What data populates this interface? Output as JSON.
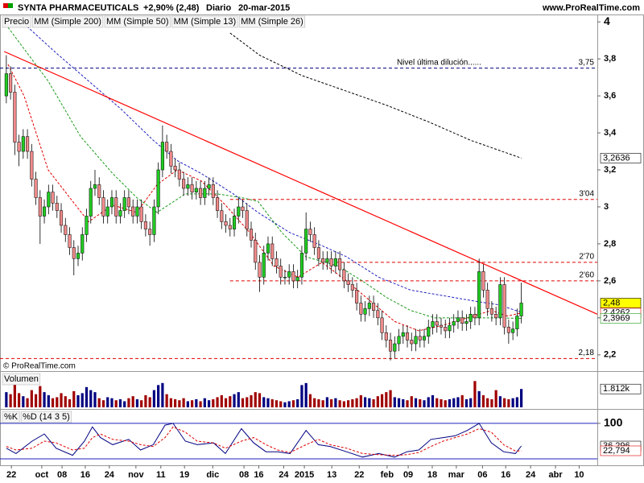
{
  "chart_data": [
    {
      "type": "candlestick",
      "title": "SYNTA PHARMACEUTICALS",
      "change": "+2,90% (2,48)",
      "period": "Diario",
      "date": "20-mar-2015",
      "source": "www.ProRealTime.com",
      "copyright": "© ProRealTime.com",
      "price_label": "Precio",
      "up_color": "#22cc22",
      "down_color": "#f08a8a",
      "open": [
        3.6,
        3.72,
        3.62,
        3.35,
        3.3,
        3.38,
        3.3,
        3.15,
        3.05,
        2.95,
        3.0,
        3.08,
        3.02,
        2.98,
        2.9,
        2.85,
        2.78,
        2.72,
        2.75,
        2.85,
        2.95,
        3.1,
        3.12,
        3.05,
        2.95,
        3.0,
        3.05,
        2.95,
        2.98,
        3.05,
        3.0,
        2.95,
        3.0,
        2.92,
        2.88,
        2.85,
        3.0,
        3.2,
        3.35,
        3.3,
        3.22,
        3.2,
        3.15,
        3.1,
        3.12,
        3.08,
        3.1,
        3.05,
        3.1,
        3.12,
        3.05,
        2.98,
        2.92,
        2.9,
        2.88,
        2.95,
        3.0,
        2.98,
        2.88,
        2.82,
        2.7,
        2.62,
        2.75,
        2.8,
        2.72,
        2.68,
        2.62,
        2.62,
        2.65,
        2.6,
        2.62,
        2.75,
        2.88,
        2.85,
        2.78,
        2.72,
        2.7,
        2.72,
        2.68,
        2.72,
        2.66,
        2.6,
        2.58,
        2.55,
        2.48,
        2.42,
        2.45,
        2.48,
        2.44,
        2.4,
        2.32,
        2.28,
        2.22,
        2.26,
        2.3,
        2.32,
        2.28,
        2.26,
        2.3,
        2.28,
        2.3,
        2.35,
        2.38,
        2.36,
        2.35,
        2.33,
        2.36,
        2.38,
        2.4,
        2.37,
        2.38,
        2.42,
        2.4,
        2.65,
        2.55,
        2.45,
        2.42,
        2.4,
        2.58,
        2.35,
        2.32,
        2.34,
        2.41
      ],
      "high": [
        3.82,
        3.76,
        3.66,
        3.39,
        3.42,
        3.42,
        3.34,
        3.19,
        3.09,
        3.04,
        3.12,
        3.12,
        3.06,
        3.02,
        2.94,
        2.89,
        2.82,
        2.79,
        2.89,
        2.99,
        3.14,
        3.2,
        3.16,
        3.09,
        3.04,
        3.09,
        3.09,
        3.02,
        3.09,
        3.09,
        3.04,
        3.04,
        3.04,
        2.96,
        2.92,
        3.04,
        3.24,
        3.44,
        3.39,
        3.34,
        3.26,
        3.24,
        3.19,
        3.16,
        3.16,
        3.14,
        3.14,
        3.14,
        3.16,
        3.16,
        3.09,
        3.02,
        2.96,
        2.94,
        2.99,
        3.05,
        3.04,
        3.02,
        2.92,
        2.86,
        2.74,
        2.79,
        2.84,
        2.84,
        2.76,
        2.72,
        2.66,
        2.69,
        2.69,
        2.66,
        2.79,
        2.97,
        2.92,
        2.89,
        2.82,
        2.76,
        2.76,
        2.76,
        2.76,
        2.76,
        2.7,
        2.64,
        2.62,
        2.59,
        2.52,
        2.49,
        2.52,
        2.52,
        2.48,
        2.44,
        2.36,
        2.32,
        2.3,
        2.34,
        2.36,
        2.36,
        2.32,
        2.34,
        2.34,
        2.34,
        2.39,
        2.42,
        2.42,
        2.4,
        2.39,
        2.4,
        2.42,
        2.44,
        2.44,
        2.42,
        2.46,
        2.46,
        2.72,
        2.69,
        2.59,
        2.49,
        2.46,
        2.62,
        2.62,
        2.39,
        2.38,
        2.45,
        2.59
      ],
      "low": [
        3.56,
        3.58,
        3.28,
        3.22,
        3.26,
        3.26,
        3.11,
        3.01,
        2.8,
        2.91,
        2.96,
        2.98,
        2.94,
        2.86,
        2.81,
        2.74,
        2.63,
        2.68,
        2.71,
        2.81,
        2.91,
        3.06,
        3.01,
        2.91,
        2.91,
        2.96,
        2.91,
        2.91,
        2.94,
        2.96,
        2.91,
        2.91,
        2.88,
        2.84,
        2.79,
        2.81,
        2.96,
        3.16,
        3.26,
        3.18,
        3.16,
        3.11,
        3.06,
        3.06,
        3.04,
        3.04,
        3.01,
        3.01,
        3.06,
        3.01,
        2.94,
        2.88,
        2.86,
        2.84,
        2.84,
        2.91,
        2.94,
        2.84,
        2.78,
        2.66,
        2.54,
        2.58,
        2.71,
        2.68,
        2.64,
        2.58,
        2.58,
        2.58,
        2.56,
        2.56,
        2.58,
        2.71,
        2.81,
        2.74,
        2.68,
        2.66,
        2.66,
        2.64,
        2.64,
        2.62,
        2.56,
        2.54,
        2.51,
        2.44,
        2.38,
        2.38,
        2.41,
        2.4,
        2.36,
        2.28,
        2.24,
        2.17,
        2.18,
        2.22,
        2.26,
        2.24,
        2.22,
        2.22,
        2.24,
        2.24,
        2.26,
        2.31,
        2.32,
        2.31,
        2.29,
        2.29,
        2.32,
        2.34,
        2.33,
        2.33,
        2.34,
        2.36,
        2.36,
        2.51,
        2.41,
        2.38,
        2.36,
        2.36,
        2.31,
        2.26,
        2.28,
        2.3,
        2.37
      ],
      "close": [
        3.72,
        3.62,
        3.35,
        3.3,
        3.38,
        3.3,
        3.15,
        3.05,
        2.95,
        3.0,
        3.08,
        3.02,
        2.98,
        2.9,
        2.85,
        2.78,
        2.72,
        2.75,
        2.85,
        2.95,
        3.1,
        3.12,
        3.05,
        2.95,
        3.0,
        3.05,
        2.95,
        2.98,
        3.05,
        3.0,
        2.95,
        3.0,
        2.92,
        2.88,
        2.85,
        3.0,
        3.2,
        3.35,
        3.3,
        3.22,
        3.2,
        3.15,
        3.1,
        3.12,
        3.08,
        3.1,
        3.05,
        3.1,
        3.12,
        3.05,
        2.98,
        2.92,
        2.9,
        2.88,
        2.95,
        3.0,
        2.98,
        2.88,
        2.82,
        2.7,
        2.62,
        2.75,
        2.8,
        2.72,
        2.68,
        2.62,
        2.62,
        2.65,
        2.6,
        2.62,
        2.75,
        2.88,
        2.85,
        2.78,
        2.72,
        2.7,
        2.72,
        2.68,
        2.72,
        2.66,
        2.6,
        2.58,
        2.55,
        2.48,
        2.42,
        2.45,
        2.48,
        2.44,
        2.4,
        2.32,
        2.28,
        2.22,
        2.26,
        2.3,
        2.32,
        2.28,
        2.26,
        2.3,
        2.28,
        2.3,
        2.35,
        2.38,
        2.36,
        2.35,
        2.33,
        2.36,
        2.38,
        2.4,
        2.37,
        2.38,
        2.42,
        2.4,
        2.65,
        2.55,
        2.45,
        2.42,
        2.4,
        2.58,
        2.35,
        2.32,
        2.34,
        2.41,
        2.48
      ],
      "xlim": [
        -1.5,
        140
      ],
      "ylim": [
        2.16,
        4.04
      ],
      "yticks": [
        4,
        {
          "value": 3.8,
          "label": "3,8"
        },
        {
          "value": 3.6,
          "label": "3,6"
        },
        {
          "value": 3.4,
          "label": "3,4"
        },
        {
          "value": 3.2,
          "label": "3,2"
        },
        3,
        {
          "value": 2.8,
          "label": "2,8"
        },
        {
          "value": 2.6,
          "label": "2,6"
        },
        {
          "value": 2.4,
          "label": "2,4"
        },
        {
          "value": 2.2,
          "label": "2,2"
        }
      ],
      "series": [
        {
          "name": "MM (Simple 200)",
          "color": "#000000",
          "x": [
            53,
            60,
            70,
            80,
            90,
            100,
            110,
            122
          ],
          "values": [
            3.94,
            3.82,
            3.71,
            3.63,
            3.55,
            3.46,
            3.36,
            3.2636
          ]
        },
        {
          "name": "MM (Simple 50)",
          "color": "#2020c0",
          "x": [
            4.2,
            11.9,
            19.5,
            27.1,
            34.8,
            40.5,
            46.2,
            53.8,
            59.6,
            67.2,
            74.8,
            80.6,
            88.2,
            95.8,
            103.5,
            111.1,
            116.8,
            122
          ],
          "values": [
            3.99,
            3.83,
            3.68,
            3.53,
            3.36,
            3.25,
            3.18,
            3.07,
            2.97,
            2.86,
            2.79,
            2.73,
            2.62,
            2.55,
            2.52,
            2.49,
            2.47,
            2.43
          ]
        },
        {
          "name": "MM (Simple 13)",
          "color": "#e00000",
          "x": [
            0.4,
            4.2,
            9.9,
            15.7,
            19.5,
            25.2,
            30.9,
            35.7,
            40.5,
            46.2,
            51.9,
            57.7,
            63.4,
            69.1,
            74.8,
            80.6,
            86.3,
            92,
            97.7,
            103.5,
            109.2,
            114.9,
            118.7,
            122
          ],
          "values": [
            3.77,
            3.6,
            3.2,
            3.03,
            2.92,
            3.01,
            2.97,
            3.12,
            3.2,
            3.14,
            3.01,
            2.86,
            2.68,
            2.62,
            2.7,
            2.6,
            2.49,
            2.38,
            2.33,
            2.36,
            2.4,
            2.44,
            2.41,
            2.4262
          ]
        },
        {
          "name": "MM (Simple 26)",
          "color": "#1a9a1a",
          "x": [
            0.4,
            9.9,
            17.6,
            25.2,
            30.9,
            35.7,
            42.4,
            50,
            55.7,
            59.6,
            65.3,
            71,
            78.6,
            84.3,
            90.1,
            95.8,
            101.5,
            109.2,
            116.8,
            122
          ],
          "values": [
            3.97,
            3.68,
            3.38,
            3.18,
            3.05,
            2.97,
            3.07,
            3.07,
            3.05,
            3.03,
            2.86,
            2.73,
            2.68,
            2.6,
            2.51,
            2.44,
            2.4,
            2.4,
            2.4,
            2.3969
          ]
        }
      ],
      "trendline": {
        "color": "#ff0000",
        "x": [
          -0.5,
          140
        ],
        "values": [
          3.84,
          2.42
        ]
      },
      "levels": [
        {
          "value": 3.75,
          "label": "3,75",
          "note": "Nivel última dilución......",
          "from": -1.5,
          "color": "#000080"
        },
        {
          "value": 3.04,
          "label": "3'04",
          "from": 53,
          "color": "#e00000"
        },
        {
          "value": 2.7,
          "label": "2'70",
          "from": 78,
          "color": "#e00000"
        },
        {
          "value": 2.6,
          "label": "2'60",
          "from": 53,
          "color": "#e00000"
        },
        {
          "value": 2.18,
          "label": "2,18",
          "from": -1.5,
          "color": "#e00000"
        }
      ],
      "markers": [
        {
          "value": 3.2636,
          "label": "3,2636",
          "color": "#000000",
          "background": "#ffffff"
        },
        {
          "value": 2.48,
          "label": "2,48",
          "color": "#000000",
          "background": "#ffff00"
        },
        {
          "value": 2.4262,
          "label": "2,4262",
          "color": "#e00000",
          "background": "#ffffff"
        },
        {
          "value": 2.3969,
          "label": "2,3969",
          "color": "#1a9a1a",
          "background": "#ffffff"
        }
      ]
    },
    {
      "type": "bar",
      "title": "Volumen",
      "up_color": "#000080",
      "down_color": "#a00000",
      "values": [
        1500,
        1300,
        2600,
        1400,
        1100,
        900,
        1700,
        1300,
        2100,
        1500,
        1200,
        900,
        1000,
        1400,
        1100,
        800,
        1600,
        1200,
        1400,
        2000,
        1700,
        1500,
        900,
        700,
        1000,
        900,
        700,
        800,
        600,
        900,
        1100,
        800,
        700,
        1200,
        1000,
        1700,
        2200,
        2400,
        1300,
        900,
        800,
        700,
        900,
        600,
        700,
        800,
        600,
        900,
        700,
        800,
        1000,
        1200,
        900,
        1100,
        1300,
        1500,
        900,
        1000,
        1200,
        1500,
        1400,
        1000,
        900,
        800,
        700,
        600,
        500,
        600,
        700,
        800,
        2200,
        2400,
        1300,
        900,
        800,
        700,
        1000,
        800,
        900,
        700,
        600,
        700,
        800,
        900,
        1200,
        1000,
        900,
        800,
        1100,
        1300,
        1500,
        1700,
        1000,
        900,
        800,
        700,
        1100,
        900,
        800,
        700,
        1000,
        1200,
        900,
        800,
        700,
        800,
        900,
        1000,
        1200,
        800,
        900,
        2600,
        1600,
        1200,
        900,
        800,
        1700,
        1100,
        900,
        800,
        900,
        1000,
        1812
      ],
      "ylim": [
        0,
        3500
      ],
      "markers": [
        {
          "value": 1812,
          "label": "1.812k",
          "color": "#000000",
          "background": "#ffffff"
        }
      ]
    },
    {
      "type": "line",
      "ylim": [
        -18,
        136
      ],
      "yticks": [
        100
      ],
      "bands": [
        0,
        100
      ],
      "series": [
        {
          "name": "%K",
          "color": "#000080",
          "x": [
            0,
            2.3,
            6.1,
            9,
            11.8,
            15.7,
            18.5,
            20.4,
            22.3,
            25.2,
            29,
            31.8,
            34.8,
            37.6,
            39.5,
            42.4,
            45.2,
            49.1,
            51.9,
            55.7,
            58.6,
            61.5,
            64.3,
            67.2,
            71,
            73.9,
            76.7,
            80.6,
            84.4,
            88.2,
            92,
            94.9,
            97.7,
            100.6,
            103.5,
            106.3,
            109.2,
            112,
            114.9,
            117.8,
            120.6,
            122
          ],
          "values": [
            30,
            15,
            50,
            70,
            30,
            10,
            50,
            90,
            60,
            40,
            55,
            25,
            40,
            95,
            100,
            50,
            40,
            45,
            15,
            85,
            45,
            20,
            20,
            15,
            80,
            40,
            35,
            20,
            5,
            15,
            5,
            20,
            25,
            55,
            60,
            65,
            80,
            100,
            45,
            20,
            15,
            36.296
          ]
        },
        {
          "name": "%D (14 3 5)",
          "color": "#e00000",
          "x": [
            0,
            2.3,
            6.1,
            9,
            11.8,
            15.7,
            18.5,
            20.4,
            22.3,
            25.2,
            29,
            31.8,
            34.8,
            37.6,
            39.5,
            42.4,
            45.2,
            49.1,
            51.9,
            55.7,
            58.6,
            61.5,
            64.3,
            67.2,
            71,
            73.9,
            76.7,
            80.6,
            84.4,
            88.2,
            92,
            94.9,
            97.7,
            100.6,
            103.5,
            106.3,
            109.2,
            112,
            114.9,
            117.8,
            120.6,
            122
          ],
          "values": [
            35,
            25,
            30,
            50,
            45,
            25,
            30,
            60,
            70,
            55,
            50,
            40,
            35,
            60,
            90,
            75,
            50,
            45,
            30,
            50,
            60,
            40,
            25,
            18,
            40,
            55,
            40,
            30,
            15,
            12,
            10,
            12,
            18,
            35,
            50,
            60,
            70,
            85,
            75,
            40,
            22,
            22.794
          ]
        }
      ],
      "markers": [
        {
          "value": 36.296,
          "label": "36,296",
          "color": "#000000",
          "background": "#ffffff"
        },
        {
          "value": 22.794,
          "label": "22,794",
          "color": "#e00000",
          "background": "#ffffff"
        }
      ],
      "xlim": [
        -1.5,
        140
      ],
      "xticks": [
        {
          "value": 1.2,
          "label": "22"
        },
        {
          "value": 8.4,
          "label": "oct"
        },
        {
          "value": 13.2,
          "label": "08"
        },
        {
          "value": 18.7,
          "label": "16"
        },
        {
          "value": 24.4,
          "label": "24"
        },
        {
          "value": 30.7,
          "label": "nov"
        },
        {
          "value": 36.6,
          "label": "11"
        },
        {
          "value": 42.2,
          "label": "19"
        },
        {
          "value": 48.9,
          "label": "dic"
        },
        {
          "value": 56.3,
          "label": "08"
        },
        {
          "value": 59.8,
          "label": "16"
        },
        {
          "value": 65.7,
          "label": "24"
        },
        {
          "value": 70.6,
          "label": "2015"
        },
        {
          "value": 77.1,
          "label": "13"
        },
        {
          "value": 83.6,
          "label": "22"
        },
        {
          "value": 90.2,
          "label": "feb"
        },
        {
          "value": 95.2,
          "label": "09"
        },
        {
          "value": 100.9,
          "label": "18"
        },
        {
          "value": 106.6,
          "label": "mar"
        },
        {
          "value": 112.8,
          "label": "06"
        },
        {
          "value": 118.3,
          "label": "16"
        },
        {
          "value": 124.2,
          "label": "24"
        },
        {
          "value": 130.1,
          "label": "abr"
        },
        {
          "value": 135.7,
          "label": "10"
        }
      ]
    }
  ]
}
